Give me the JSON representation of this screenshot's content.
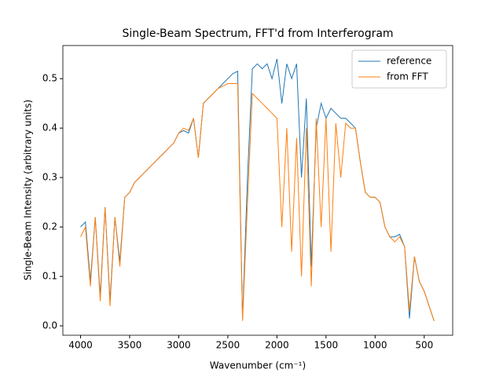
{
  "chart_data": {
    "type": "line",
    "title": "Single-Beam Spectrum, FFT'd from Interferogram",
    "xlabel": "Wavenumber (cm⁻¹)",
    "ylabel": "Single-Beam Intensity (arbitrary units)",
    "x": [
      4000,
      3950,
      3900,
      3850,
      3800,
      3750,
      3700,
      3650,
      3600,
      3550,
      3500,
      3450,
      3400,
      3350,
      3300,
      3250,
      3200,
      3150,
      3100,
      3050,
      3000,
      2950,
      2900,
      2850,
      2800,
      2750,
      2700,
      2650,
      2600,
      2550,
      2500,
      2450,
      2400,
      2350,
      2300,
      2250,
      2200,
      2150,
      2100,
      2050,
      2000,
      1950,
      1900,
      1850,
      1800,
      1750,
      1700,
      1650,
      1600,
      1550,
      1500,
      1450,
      1400,
      1350,
      1300,
      1250,
      1200,
      1150,
      1100,
      1050,
      1000,
      950,
      900,
      850,
      800,
      750,
      700,
      650,
      600,
      550,
      500,
      450,
      400
    ],
    "series": [
      {
        "name": "reference",
        "color": "#1f77b4",
        "values": [
          0.2,
          0.21,
          0.09,
          0.22,
          0.06,
          0.24,
          0.05,
          0.22,
          0.13,
          0.26,
          0.27,
          0.29,
          0.3,
          0.31,
          0.32,
          0.33,
          0.34,
          0.35,
          0.36,
          0.37,
          0.39,
          0.395,
          0.39,
          0.42,
          0.34,
          0.45,
          0.46,
          0.47,
          0.48,
          0.49,
          0.5,
          0.51,
          0.515,
          0.015,
          0.3,
          0.52,
          0.53,
          0.52,
          0.53,
          0.5,
          0.54,
          0.45,
          0.53,
          0.5,
          0.53,
          0.3,
          0.46,
          0.12,
          0.4,
          0.45,
          0.42,
          0.44,
          0.43,
          0.42,
          0.42,
          0.41,
          0.4,
          0.33,
          0.27,
          0.26,
          0.26,
          0.25,
          0.2,
          0.18,
          0.18,
          0.185,
          0.16,
          0.015,
          0.14,
          0.09,
          0.07,
          0.04,
          0.01
        ]
      },
      {
        "name": "from FFT",
        "color": "#ff7f0e",
        "values": [
          0.18,
          0.2,
          0.08,
          0.22,
          0.05,
          0.24,
          0.04,
          0.22,
          0.12,
          0.26,
          0.27,
          0.29,
          0.3,
          0.31,
          0.32,
          0.33,
          0.34,
          0.35,
          0.36,
          0.37,
          0.39,
          0.4,
          0.395,
          0.42,
          0.34,
          0.45,
          0.46,
          0.47,
          0.48,
          0.485,
          0.49,
          0.49,
          0.49,
          0.01,
          0.25,
          0.47,
          0.46,
          0.45,
          0.44,
          0.43,
          0.42,
          0.2,
          0.4,
          0.15,
          0.38,
          0.1,
          0.4,
          0.08,
          0.42,
          0.2,
          0.42,
          0.15,
          0.41,
          0.3,
          0.41,
          0.4,
          0.4,
          0.33,
          0.27,
          0.26,
          0.26,
          0.25,
          0.2,
          0.18,
          0.17,
          0.18,
          0.16,
          0.03,
          0.14,
          0.09,
          0.07,
          0.04,
          0.01
        ]
      }
    ],
    "xlim": [
      4180,
      210
    ],
    "ylim": [
      -0.019,
      0.567
    ],
    "xticks": [
      4000,
      3500,
      3000,
      2500,
      2000,
      1500,
      1000,
      500
    ],
    "yticks": [
      {
        "value": 0,
        "label": "0.0"
      },
      0.1,
      0.2,
      0.3,
      0.4,
      0.5
    ],
    "legend": "upper right"
  }
}
